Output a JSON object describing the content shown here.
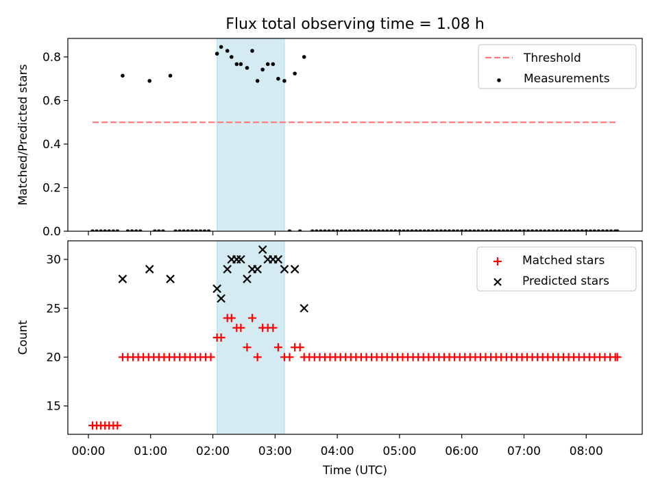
{
  "title": "Flux total observing time = 1.08 h",
  "chart_data": [
    {
      "type": "scatter",
      "panel": "top",
      "ylabel": "Matched/Predicted stars",
      "xlabel": "",
      "x_unit": "hours (UTC)",
      "xlim": [
        -0.33,
        8.9
      ],
      "ylim": [
        0,
        0.885
      ],
      "yticks": [
        0.0,
        0.2,
        0.4,
        0.6,
        0.8
      ],
      "ytick_labels": [
        "0.0",
        "0.2",
        "0.4",
        "0.6",
        "0.8"
      ],
      "legend": {
        "placement": "top-right",
        "entries": [
          "Threshold",
          "Measurements"
        ]
      },
      "shaded_span": {
        "from": 2.067,
        "to": 3.15,
        "color": "#add8e6"
      },
      "threshold": {
        "name": "Threshold",
        "value": 0.5,
        "x_from": 0.067,
        "x_to": 8.5,
        "color": "#ff7b7b"
      },
      "series": [
        {
          "name": "Measurements",
          "color": "#000000",
          "points": [
            [
              0.067,
              0
            ],
            [
              0.133,
              0
            ],
            [
              0.2,
              0
            ],
            [
              0.267,
              0
            ],
            [
              0.333,
              0
            ],
            [
              0.4,
              0
            ],
            [
              0.467,
              0
            ],
            [
              0.55,
              0.714
            ],
            [
              0.983,
              0.69
            ],
            [
              1.317,
              0.714
            ],
            [
              0.633,
              0
            ],
            [
              0.7,
              0
            ],
            [
              0.767,
              0
            ],
            [
              0.833,
              0
            ],
            [
              1.067,
              0
            ],
            [
              1.133,
              0
            ],
            [
              1.2,
              0
            ],
            [
              1.4,
              0
            ],
            [
              1.467,
              0
            ],
            [
              1.533,
              0
            ],
            [
              1.6,
              0
            ],
            [
              1.667,
              0
            ],
            [
              1.733,
              0
            ],
            [
              1.8,
              0
            ],
            [
              1.867,
              0
            ],
            [
              1.933,
              0
            ],
            [
              2.067,
              0.815
            ],
            [
              2.133,
              0.846
            ],
            [
              2.233,
              0.828
            ],
            [
              2.3,
              0.8
            ],
            [
              2.383,
              0.767
            ],
            [
              2.45,
              0.767
            ],
            [
              2.55,
              0.75
            ],
            [
              2.633,
              0.828
            ],
            [
              2.717,
              0.69
            ],
            [
              2.8,
              0.742
            ],
            [
              2.883,
              0.767
            ],
            [
              2.967,
              0.767
            ],
            [
              3.05,
              0.7
            ],
            [
              3.15,
              0.69
            ],
            [
              3.317,
              0.724
            ],
            [
              3.467,
              0.8
            ],
            [
              3.233,
              0
            ],
            [
              3.4,
              0
            ],
            [
              3.6,
              0
            ],
            [
              3.667,
              0
            ],
            [
              3.733,
              0
            ],
            [
              3.8,
              0
            ],
            [
              3.867,
              0
            ],
            [
              3.933,
              0
            ],
            [
              4.0,
              0
            ],
            [
              4.067,
              0
            ],
            [
              4.133,
              0
            ],
            [
              4.2,
              0
            ],
            [
              4.267,
              0
            ],
            [
              4.333,
              0
            ],
            [
              4.4,
              0
            ],
            [
              4.467,
              0
            ],
            [
              4.533,
              0
            ],
            [
              4.6,
              0
            ],
            [
              4.667,
              0
            ],
            [
              4.733,
              0
            ],
            [
              4.8,
              0
            ],
            [
              4.867,
              0
            ],
            [
              4.933,
              0
            ],
            [
              5.0,
              0
            ],
            [
              5.067,
              0
            ],
            [
              5.133,
              0
            ],
            [
              5.2,
              0
            ],
            [
              5.267,
              0
            ],
            [
              5.333,
              0
            ],
            [
              5.4,
              0
            ],
            [
              5.467,
              0
            ],
            [
              5.533,
              0
            ],
            [
              5.6,
              0
            ],
            [
              5.667,
              0
            ],
            [
              5.733,
              0
            ],
            [
              5.8,
              0
            ],
            [
              5.867,
              0
            ],
            [
              5.933,
              0
            ],
            [
              6.0,
              0
            ],
            [
              6.067,
              0
            ],
            [
              6.133,
              0
            ],
            [
              6.2,
              0
            ],
            [
              6.267,
              0
            ],
            [
              6.333,
              0
            ],
            [
              6.4,
              0
            ],
            [
              6.467,
              0
            ],
            [
              6.533,
              0
            ],
            [
              6.6,
              0
            ],
            [
              6.667,
              0
            ],
            [
              6.733,
              0
            ],
            [
              6.8,
              0
            ],
            [
              6.867,
              0
            ],
            [
              6.933,
              0
            ],
            [
              7.0,
              0
            ],
            [
              7.067,
              0
            ],
            [
              7.133,
              0
            ],
            [
              7.2,
              0
            ],
            [
              7.267,
              0
            ],
            [
              7.333,
              0
            ],
            [
              7.4,
              0
            ],
            [
              7.467,
              0
            ],
            [
              7.533,
              0
            ],
            [
              7.6,
              0
            ],
            [
              7.667,
              0
            ],
            [
              7.733,
              0
            ],
            [
              7.8,
              0
            ],
            [
              7.867,
              0
            ],
            [
              7.933,
              0
            ],
            [
              8.0,
              0
            ],
            [
              8.067,
              0
            ],
            [
              8.133,
              0
            ],
            [
              8.2,
              0
            ],
            [
              8.267,
              0
            ],
            [
              8.333,
              0
            ],
            [
              8.4,
              0
            ],
            [
              8.467,
              0
            ],
            [
              8.5,
              0
            ]
          ]
        }
      ]
    },
    {
      "type": "scatter",
      "panel": "bottom",
      "ylabel": "Count",
      "xlabel": "Time (UTC)",
      "x_unit": "hours (UTC)",
      "xlim": [
        -0.33,
        8.9
      ],
      "ylim": [
        12.1,
        31.9
      ],
      "yticks": [
        15,
        20,
        25,
        30
      ],
      "ytick_labels": [
        "15",
        "20",
        "25",
        "30"
      ],
      "xticks": [
        0,
        1,
        2,
        3,
        4,
        5,
        6,
        7,
        8
      ],
      "xtick_labels": [
        "00:00",
        "01:00",
        "02:00",
        "03:00",
        "04:00",
        "05:00",
        "06:00",
        "07:00",
        "08:00"
      ],
      "legend": {
        "placement": "top-right",
        "entries": [
          "Matched stars",
          "Predicted stars"
        ]
      },
      "shaded_span": {
        "from": 2.067,
        "to": 3.15,
        "color": "#add8e6"
      },
      "series": [
        {
          "name": "Matched stars",
          "marker": "plus",
          "color": "#ff0000",
          "points": [
            [
              0.067,
              13
            ],
            [
              0.133,
              13
            ],
            [
              0.2,
              13
            ],
            [
              0.267,
              13
            ],
            [
              0.333,
              13
            ],
            [
              0.4,
              13
            ],
            [
              0.467,
              13
            ],
            [
              0.55,
              20
            ],
            [
              0.633,
              20
            ],
            [
              0.717,
              20
            ],
            [
              0.8,
              20
            ],
            [
              0.883,
              20
            ],
            [
              0.967,
              20
            ],
            [
              1.05,
              20
            ],
            [
              1.133,
              20
            ],
            [
              1.217,
              20
            ],
            [
              1.3,
              20
            ],
            [
              1.383,
              20
            ],
            [
              1.467,
              20
            ],
            [
              1.55,
              20
            ],
            [
              1.633,
              20
            ],
            [
              1.717,
              20
            ],
            [
              1.8,
              20
            ],
            [
              1.883,
              20
            ],
            [
              1.967,
              20
            ],
            [
              2.067,
              22
            ],
            [
              2.133,
              22
            ],
            [
              2.233,
              24
            ],
            [
              2.3,
              24
            ],
            [
              2.383,
              23
            ],
            [
              2.45,
              23
            ],
            [
              2.55,
              21
            ],
            [
              2.633,
              24
            ],
            [
              2.717,
              20
            ],
            [
              2.8,
              23
            ],
            [
              2.883,
              23
            ],
            [
              2.967,
              23
            ],
            [
              3.05,
              21
            ],
            [
              3.15,
              20
            ],
            [
              3.233,
              20
            ],
            [
              3.317,
              21
            ],
            [
              3.4,
              21
            ],
            [
              3.467,
              20
            ],
            [
              3.55,
              20
            ],
            [
              3.633,
              20
            ],
            [
              3.717,
              20
            ],
            [
              3.8,
              20
            ],
            [
              3.883,
              20
            ],
            [
              3.967,
              20
            ],
            [
              4.05,
              20
            ],
            [
              4.133,
              20
            ],
            [
              4.217,
              20
            ],
            [
              4.3,
              20
            ],
            [
              4.383,
              20
            ],
            [
              4.467,
              20
            ],
            [
              4.55,
              20
            ],
            [
              4.633,
              20
            ],
            [
              4.717,
              20
            ],
            [
              4.8,
              20
            ],
            [
              4.883,
              20
            ],
            [
              4.967,
              20
            ],
            [
              5.05,
              20
            ],
            [
              5.133,
              20
            ],
            [
              5.217,
              20
            ],
            [
              5.3,
              20
            ],
            [
              5.383,
              20
            ],
            [
              5.467,
              20
            ],
            [
              5.55,
              20
            ],
            [
              5.633,
              20
            ],
            [
              5.717,
              20
            ],
            [
              5.8,
              20
            ],
            [
              5.883,
              20
            ],
            [
              5.967,
              20
            ],
            [
              6.05,
              20
            ],
            [
              6.133,
              20
            ],
            [
              6.217,
              20
            ],
            [
              6.3,
              20
            ],
            [
              6.383,
              20
            ],
            [
              6.467,
              20
            ],
            [
              6.55,
              20
            ],
            [
              6.633,
              20
            ],
            [
              6.717,
              20
            ],
            [
              6.8,
              20
            ],
            [
              6.883,
              20
            ],
            [
              6.967,
              20
            ],
            [
              7.05,
              20
            ],
            [
              7.133,
              20
            ],
            [
              7.217,
              20
            ],
            [
              7.3,
              20
            ],
            [
              7.383,
              20
            ],
            [
              7.467,
              20
            ],
            [
              7.55,
              20
            ],
            [
              7.633,
              20
            ],
            [
              7.717,
              20
            ],
            [
              7.8,
              20
            ],
            [
              7.883,
              20
            ],
            [
              7.967,
              20
            ],
            [
              8.05,
              20
            ],
            [
              8.133,
              20
            ],
            [
              8.217,
              20
            ],
            [
              8.3,
              20
            ],
            [
              8.383,
              20
            ],
            [
              8.467,
              20
            ],
            [
              8.5,
              20
            ]
          ]
        },
        {
          "name": "Predicted stars",
          "marker": "x",
          "color": "#000000",
          "points": [
            [
              0.55,
              28
            ],
            [
              0.983,
              29
            ],
            [
              1.317,
              28
            ],
            [
              2.067,
              27
            ],
            [
              2.133,
              26
            ],
            [
              2.233,
              29
            ],
            [
              2.3,
              30
            ],
            [
              2.383,
              30
            ],
            [
              2.45,
              30
            ],
            [
              2.55,
              28
            ],
            [
              2.633,
              29
            ],
            [
              2.717,
              29
            ],
            [
              2.8,
              31
            ],
            [
              2.883,
              30
            ],
            [
              2.967,
              30
            ],
            [
              3.05,
              30
            ],
            [
              3.15,
              29
            ],
            [
              3.317,
              29
            ],
            [
              3.467,
              25
            ]
          ]
        }
      ]
    }
  ]
}
